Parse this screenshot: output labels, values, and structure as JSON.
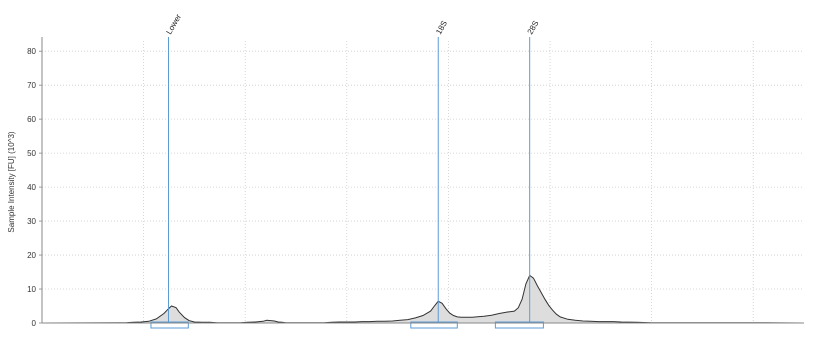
{
  "chart_data": {
    "type": "area",
    "title": "",
    "xlabel": "",
    "ylabel": "Sample Intensity [FU] (10^3)",
    "ylim": [
      0,
      83
    ],
    "yticks": [
      0,
      10,
      20,
      30,
      40,
      50,
      60,
      70,
      80
    ],
    "xlim": [
      0,
      100
    ],
    "grid": true,
    "colors": {
      "fill": "#dddddd",
      "line": "#333333",
      "marker": "#5b9bd5",
      "axis": "#888888",
      "grid": "#cccccc"
    },
    "series": [
      {
        "x": [
          0,
          10,
          11,
          12,
          13,
          14,
          15,
          16,
          16.6,
          17,
          17.6,
          18,
          18.7,
          19.3,
          20,
          21,
          22,
          23,
          24,
          25,
          26,
          27,
          28,
          29,
          29.5,
          30.5,
          31,
          31.5,
          32,
          33,
          34,
          35,
          36,
          37,
          38,
          39,
          40,
          41,
          42,
          43,
          44,
          45,
          46,
          47,
          48,
          49,
          50,
          51,
          51.5,
          52,
          52.5,
          53,
          53.5,
          54,
          54.5,
          55,
          55.5,
          56,
          56.5,
          57,
          58,
          59,
          60,
          61,
          62,
          62.5,
          63,
          63.5,
          64,
          64.5,
          65,
          65.5,
          66,
          66.5,
          67,
          67.5,
          68,
          69,
          70,
          71,
          72,
          73,
          74,
          75,
          76,
          78,
          80,
          85,
          90,
          95,
          100
        ],
        "y": [
          0,
          0.1,
          0.1,
          0.2,
          0.3,
          0.5,
          1.2,
          2.8,
          4.2,
          5.0,
          4.5,
          3.2,
          1.6,
          0.7,
          0.3,
          0.2,
          0.2,
          0.1,
          0.1,
          0.1,
          0.1,
          0.2,
          0.3,
          0.5,
          0.8,
          0.6,
          0.3,
          0.2,
          0.1,
          0.1,
          0.1,
          0.1,
          0.1,
          0.1,
          0.2,
          0.3,
          0.3,
          0.3,
          0.4,
          0.4,
          0.5,
          0.5,
          0.6,
          0.8,
          1.0,
          1.5,
          2.2,
          3.5,
          5.0,
          6.4,
          5.8,
          4.2,
          2.9,
          2.2,
          1.8,
          1.7,
          1.7,
          1.7,
          1.7,
          1.8,
          2.0,
          2.3,
          2.8,
          3.2,
          3.5,
          4.5,
          7.0,
          11.5,
          14.0,
          13.2,
          11.0,
          9.0,
          7.0,
          5.2,
          3.8,
          2.6,
          1.8,
          1.1,
          0.8,
          0.6,
          0.5,
          0.4,
          0.4,
          0.4,
          0.3,
          0.2,
          0.1,
          0.1,
          0.1,
          0.1,
          0
        ]
      }
    ],
    "markers": [
      {
        "label": "Lower",
        "x": 16.6
      },
      {
        "label": "18S",
        "x": 52
      },
      {
        "label": "28S",
        "x": 64
      }
    ],
    "integration_ranges": [
      {
        "from": 14.3,
        "to": 19.2
      },
      {
        "from": 48.4,
        "to": 54.5
      },
      {
        "from": 59.5,
        "to": 65.8
      }
    ]
  }
}
